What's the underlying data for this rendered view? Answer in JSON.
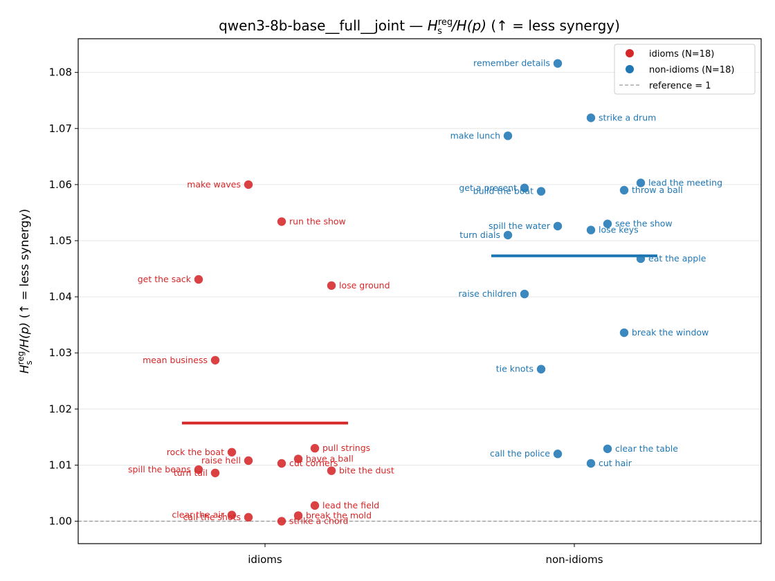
{
  "chart_data": {
    "type": "scatter",
    "title": "qwen3-8b-base__full__joint — H_s^reg/H(p)  (↑ = less synergy)",
    "title_parts": {
      "prefix": "qwen3-8b-base__full__joint — ",
      "sym_main": "H",
      "sym_sub": "s",
      "sym_sup": "reg",
      "sym_rest": "/H(p)",
      "suffix": "  (↑ = less synergy)"
    },
    "ylabel": "H_s^reg/H(p)  (↑ = less synergy)",
    "ylabel_parts": {
      "sym_main": "H",
      "sym_sub": "s",
      "sym_sup": "reg",
      "sym_rest": "/H(p)",
      "suffix": "  (↑ = less synergy)"
    },
    "categories": [
      "idioms",
      "non-idioms"
    ],
    "ylim": [
      0.996,
      1.086
    ],
    "yticks": [
      "1.00",
      "1.01",
      "1.02",
      "1.03",
      "1.04",
      "1.05",
      "1.06",
      "1.07",
      "1.08"
    ],
    "grid": "horizontal",
    "legend_position": "top-right",
    "reference": {
      "value": 1.0,
      "label": "reference = 1",
      "color": "#999999"
    },
    "series": [
      {
        "name": "idioms (N=18)",
        "color": "#d62728",
        "mean": 1.0175,
        "points": [
          {
            "label": "make waves",
            "offset": -0.06,
            "y": 1.06,
            "side": "left"
          },
          {
            "label": "run the show",
            "offset": 0.06,
            "y": 1.0534,
            "side": "right"
          },
          {
            "label": "get the sack",
            "offset": -0.24,
            "y": 1.0431,
            "side": "left"
          },
          {
            "label": "lose ground",
            "offset": 0.24,
            "y": 1.042,
            "side": "right"
          },
          {
            "label": "mean business",
            "offset": -0.18,
            "y": 1.0287,
            "side": "left"
          },
          {
            "label": "pull strings",
            "offset": 0.18,
            "y": 1.013,
            "side": "right"
          },
          {
            "label": "rock the boat",
            "offset": -0.12,
            "y": 1.0123,
            "side": "left"
          },
          {
            "label": "have a ball",
            "offset": 0.12,
            "y": 1.0111,
            "side": "right"
          },
          {
            "label": "raise hell",
            "offset": -0.06,
            "y": 1.0108,
            "side": "left"
          },
          {
            "label": "cut corners",
            "offset": 0.06,
            "y": 1.0103,
            "side": "right"
          },
          {
            "label": "spill the beans",
            "offset": -0.24,
            "y": 1.0092,
            "side": "left"
          },
          {
            "label": "bite the dust",
            "offset": 0.24,
            "y": 1.009,
            "side": "right"
          },
          {
            "label": "turn tail",
            "offset": -0.18,
            "y": 1.0086,
            "side": "left"
          },
          {
            "label": "lead the field",
            "offset": 0.18,
            "y": 1.0028,
            "side": "right"
          },
          {
            "label": "clear the air",
            "offset": -0.12,
            "y": 1.0011,
            "side": "left"
          },
          {
            "label": "break the mold",
            "offset": 0.12,
            "y": 1.001,
            "side": "right"
          },
          {
            "label": "call the shots",
            "offset": -0.06,
            "y": 1.0007,
            "side": "left"
          },
          {
            "label": "strike a chord",
            "offset": 0.06,
            "y": 1.0,
            "side": "right"
          }
        ]
      },
      {
        "name": "non-idioms (N=18)",
        "color": "#1f77b4",
        "mean": 1.0473,
        "points": [
          {
            "label": "remember details",
            "offset": -0.06,
            "y": 1.0816,
            "side": "left"
          },
          {
            "label": "strike a drum",
            "offset": 0.06,
            "y": 1.0719,
            "side": "right"
          },
          {
            "label": "make lunch",
            "offset": -0.24,
            "y": 1.0687,
            "side": "left"
          },
          {
            "label": "lead the meeting",
            "offset": 0.24,
            "y": 1.0603,
            "side": "right"
          },
          {
            "label": "get a present",
            "offset": -0.18,
            "y": 1.0594,
            "side": "left"
          },
          {
            "label": "throw a ball",
            "offset": 0.18,
            "y": 1.059,
            "side": "right"
          },
          {
            "label": "build the boat",
            "offset": -0.12,
            "y": 1.0588,
            "side": "left"
          },
          {
            "label": "see the show",
            "offset": 0.12,
            "y": 1.053,
            "side": "right"
          },
          {
            "label": "spill the water",
            "offset": -0.06,
            "y": 1.0526,
            "side": "left"
          },
          {
            "label": "lose keys",
            "offset": 0.06,
            "y": 1.0519,
            "side": "right"
          },
          {
            "label": "turn dials",
            "offset": -0.24,
            "y": 1.051,
            "side": "left"
          },
          {
            "label": "eat the apple",
            "offset": 0.24,
            "y": 1.0468,
            "side": "right"
          },
          {
            "label": "raise children",
            "offset": -0.18,
            "y": 1.0405,
            "side": "left"
          },
          {
            "label": "break the window",
            "offset": 0.18,
            "y": 1.0336,
            "side": "right"
          },
          {
            "label": "tie knots",
            "offset": -0.12,
            "y": 1.0271,
            "side": "left"
          },
          {
            "label": "clear the table",
            "offset": 0.12,
            "y": 1.0129,
            "side": "right"
          },
          {
            "label": "call the police",
            "offset": -0.06,
            "y": 1.012,
            "side": "left"
          },
          {
            "label": "cut hair",
            "offset": 0.06,
            "y": 1.0103,
            "side": "right"
          }
        ]
      }
    ]
  }
}
